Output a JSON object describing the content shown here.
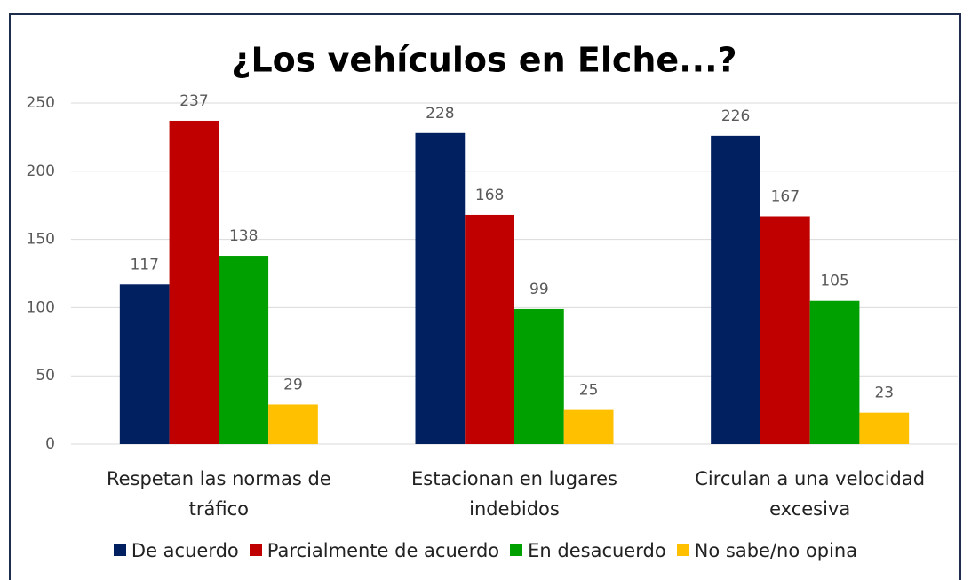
{
  "chart_data": {
    "type": "bar",
    "title": "¿Los vehículos en Elche...?",
    "categories": [
      "Respetan las normas de tráfico",
      "Estacionan en lugares indebidos",
      "Circulan a una velocidad excesiva"
    ],
    "series": [
      {
        "name": "De acuerdo",
        "color": "#002060",
        "values": [
          117,
          228,
          226
        ]
      },
      {
        "name": "Parcialmente de acuerdo",
        "color": "#c00000",
        "values": [
          237,
          168,
          167
        ]
      },
      {
        "name": "En desacuerdo",
        "color": "#00a000",
        "values": [
          138,
          99,
          105
        ]
      },
      {
        "name": "No sabe/no opina",
        "color": "#ffc000",
        "values": [
          29,
          25,
          23
        ]
      }
    ],
    "ylim": [
      0,
      250
    ],
    "yticks": [
      0,
      50,
      100,
      150,
      200,
      250
    ],
    "grid": true,
    "legend": "bottom"
  }
}
